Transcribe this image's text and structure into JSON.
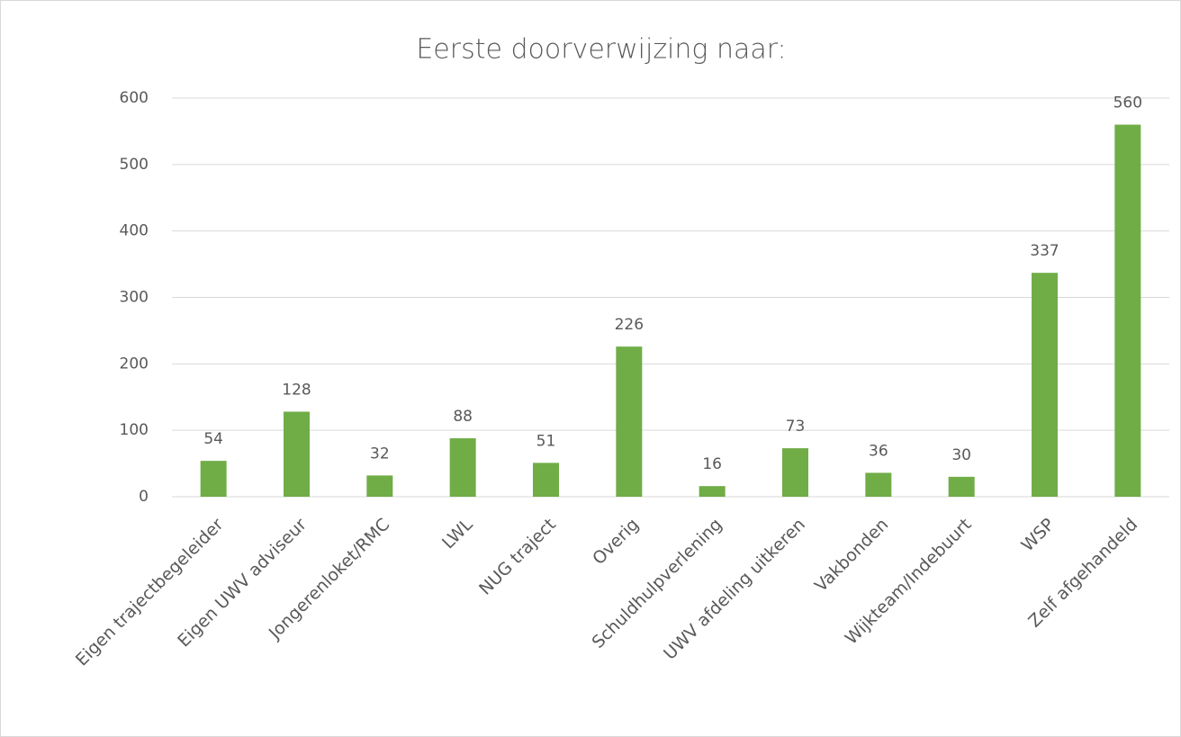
{
  "chart_data": {
    "type": "bar",
    "title": "Eerste doorverwijzing naar:",
    "categories": [
      "Eigen trajectbegeleider",
      "Eigen UWV adviseur",
      "Jongerenloket/RMC",
      "LWL",
      "NUG traject",
      "Overig",
      "Schuldhulpverlening",
      "UWV afdeling uitkeren",
      "Vakbonden",
      "Wijkteam/Indebuurt",
      "WSP",
      "Zelf afgehandeld"
    ],
    "values": [
      54,
      128,
      32,
      88,
      51,
      226,
      16,
      73,
      36,
      30,
      337,
      560
    ],
    "color": "#70ad47",
    "ylim": [
      0,
      600
    ],
    "yticks": [
      0,
      100,
      200,
      300,
      400,
      500,
      600
    ],
    "grid": true
  }
}
